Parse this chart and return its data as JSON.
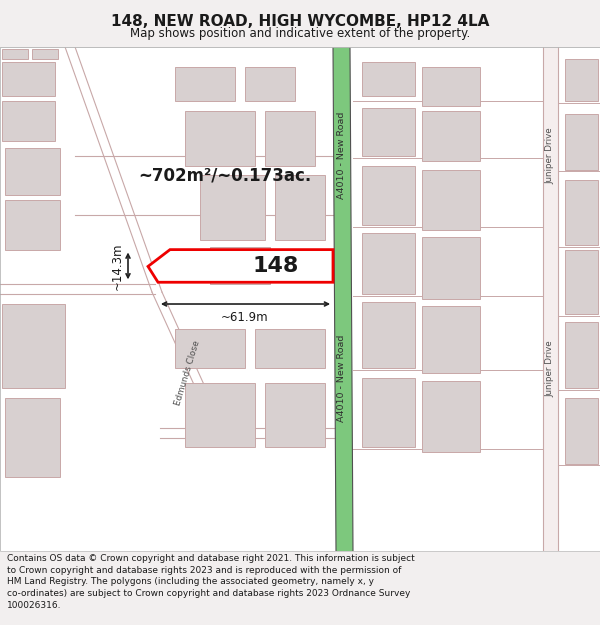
{
  "title": "148, NEW ROAD, HIGH WYCOMBE, HP12 4LA",
  "subtitle": "Map shows position and indicative extent of the property.",
  "footer_lines": [
    "Contains OS data © Crown copyright and database right 2021. This information is subject",
    "to Crown copyright and database rights 2023 and is reproduced with the permission of",
    "HM Land Registry. The polygons (including the associated geometry, namely x, y",
    "co-ordinates) are subject to Crown copyright and database rights 2023 Ordnance Survey",
    "100026316."
  ],
  "map_bg": "#ffffff",
  "bld_fill": "#d8d0d0",
  "bld_edge": "#c8a8a8",
  "road_color": "#c8a8a8",
  "green_fill": "#7dc87d",
  "green_edge": "#505050",
  "highlight_edge": "#ee0000",
  "highlight_fill": "#ffffff",
  "text_dark": "#1a1a1a",
  "text_road": "#303030",
  "area_text": "~702m²/~0.173ac.",
  "prop_label": "148",
  "dim_w": "~61.9m",
  "dim_h": "~14.3m",
  "road_label": "A4010 - New Road",
  "street_left": "Edmunds Close",
  "street_right": "Juniper Drive",
  "title_fs": 11,
  "subtitle_fs": 8.5,
  "footer_fs": 6.5
}
